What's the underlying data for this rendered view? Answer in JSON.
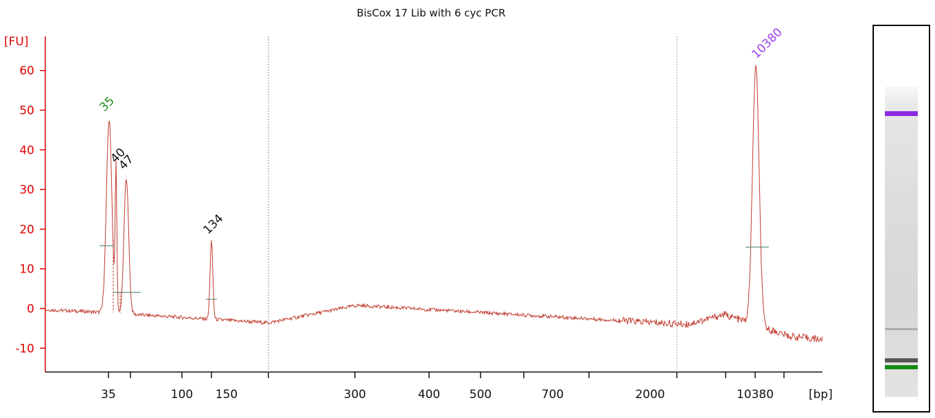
{
  "chart_data": {
    "type": "line",
    "title": "BisCox 17 Lib with 6 cyc PCR",
    "ylabel": "[FU]",
    "xlabel": "[bp]",
    "ylim": [
      -16,
      67
    ],
    "yticks": [
      60,
      50,
      40,
      30,
      20,
      10,
      0,
      -10
    ],
    "ytick_labels": [
      "60",
      "50",
      "40",
      "30",
      "20",
      "10",
      "0",
      "-10"
    ],
    "xtick_labels": [
      "35",
      "100",
      "150",
      "300",
      "400",
      "500",
      "700",
      "2000",
      "10380"
    ],
    "peaks": [
      {
        "label": "35",
        "size_bp": 35,
        "fu": 47.5,
        "color": "#1a8a1a"
      },
      {
        "label": "40",
        "size_bp": 40,
        "fu": 35,
        "color": "#111111"
      },
      {
        "label": "47",
        "size_bp": 47,
        "fu": 33,
        "color": "#111111"
      },
      {
        "label": "134",
        "size_bp": 134,
        "fu": 17,
        "color": "#111111"
      },
      {
        "label": "10380",
        "size_bp": 10380,
        "fu": 61,
        "color": "#9a3ff0"
      }
    ],
    "grid": false,
    "line_color": "#c0392b",
    "axis_color": "#e00000"
  },
  "gel": {
    "bands": [
      {
        "name": "upper-marker-band",
        "color": "#8a2be2"
      },
      {
        "name": "faint-band",
        "color": "#9a9a9a"
      },
      {
        "name": "gray-band",
        "color": "#555555"
      },
      {
        "name": "lower-marker-band",
        "color": "#128c12"
      }
    ]
  }
}
